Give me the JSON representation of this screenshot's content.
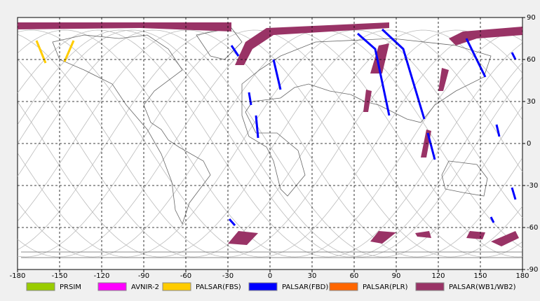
{
  "chart_data": {
    "type": "map",
    "xlim": [
      -180,
      180
    ],
    "ylim": [
      -90,
      90
    ],
    "xticks": [
      -180,
      -150,
      -120,
      -90,
      -60,
      -30,
      0,
      30,
      60,
      90,
      120,
      150,
      180
    ],
    "yticks": [
      -90,
      -60,
      -30,
      0,
      30,
      60,
      90
    ],
    "grid": true,
    "series": [
      {
        "name": "PRSIM",
        "color": "#99cc00"
      },
      {
        "name": "AVNIR-2",
        "color": "#ff00ff"
      },
      {
        "name": "PALSAR(FBS)",
        "color": "#ffcc00"
      },
      {
        "name": "PALSAR(FBD)",
        "color": "#0000ff"
      },
      {
        "name": "PALSAR(PLR)",
        "color": "#ff6600"
      },
      {
        "name": "PALSAR(WB1/WB2)",
        "color": "#993366"
      }
    ]
  }
}
